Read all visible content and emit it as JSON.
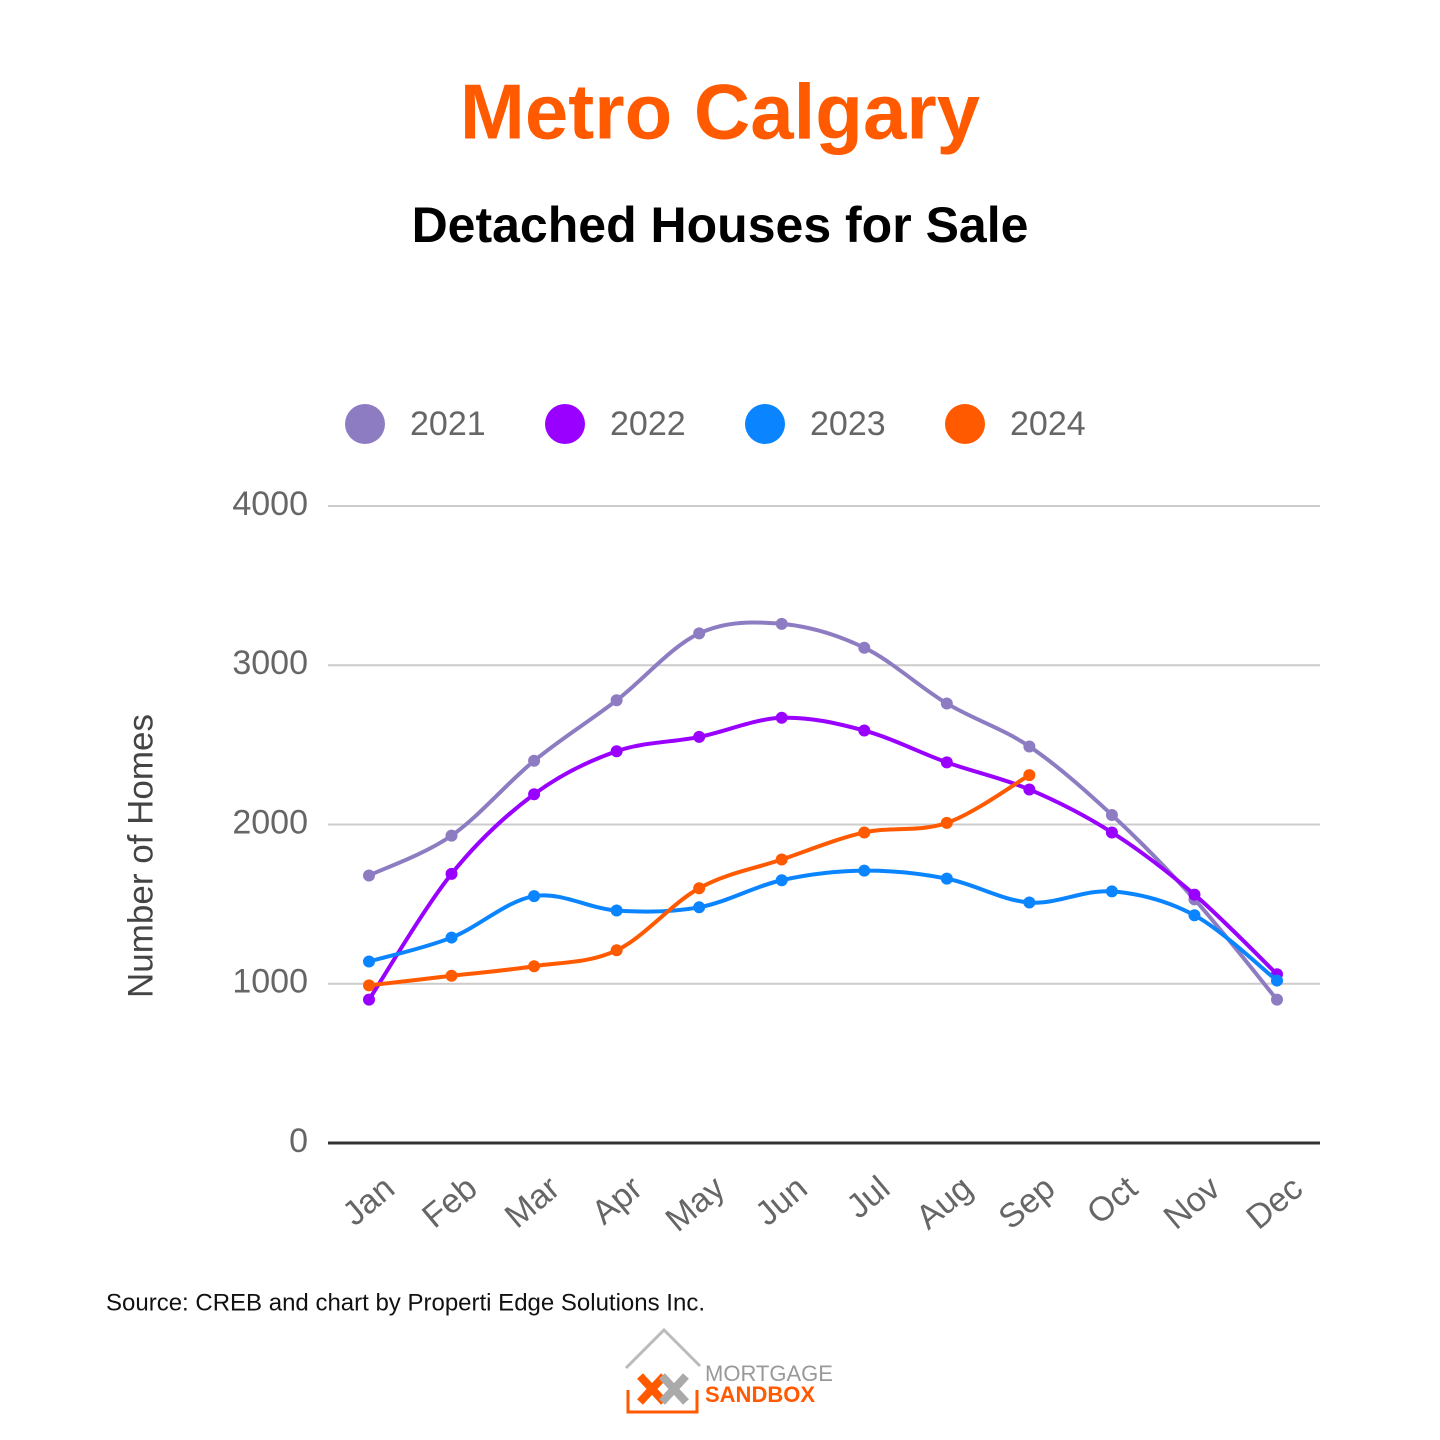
{
  "chart_data": {
    "type": "line",
    "title": "Metro Calgary",
    "subtitle": "Detached Houses for Sale",
    "y_label": "Number of Homes",
    "source": "Source: CREB and chart by Properti Edge Solutions Inc.",
    "logo": [
      "MORTGAGE",
      "SANDBOX"
    ],
    "categories": [
      "Jan",
      "Feb",
      "Mar",
      "Apr",
      "May",
      "Jun",
      "Jul",
      "Aug",
      "Sep",
      "Oct",
      "Nov",
      "Dec"
    ],
    "series": [
      {
        "name": "2021",
        "color": "#8e7cc3",
        "values": [
          1680,
          1930,
          2400,
          2780,
          3200,
          3260,
          3110,
          2760,
          2490,
          2060,
          1530,
          900
        ]
      },
      {
        "name": "2022",
        "color": "#9900ff",
        "values": [
          900,
          1690,
          2190,
          2460,
          2550,
          2670,
          2590,
          2390,
          2220,
          1950,
          1560,
          1060
        ]
      },
      {
        "name": "2023",
        "color": "#0a84ff",
        "values": [
          1140,
          1290,
          1550,
          1460,
          1480,
          1650,
          1710,
          1660,
          1510,
          1580,
          1430,
          1020
        ]
      },
      {
        "name": "2024",
        "color": "#ff5a00",
        "values": [
          990,
          1050,
          1110,
          1210,
          1600,
          1780,
          1950,
          2010,
          2310,
          null,
          null,
          null
        ]
      }
    ],
    "ylim": [
      0,
      4000
    ],
    "yticks": [
      0,
      1000,
      2000,
      3000,
      4000
    ],
    "grid": true,
    "legend": "top"
  }
}
